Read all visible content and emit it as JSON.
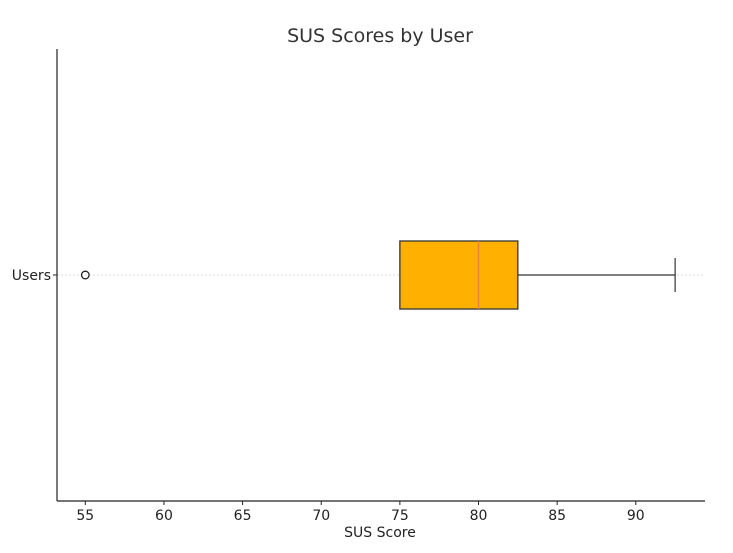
{
  "chart_data": {
    "type": "boxplot",
    "orientation": "horizontal",
    "title": "SUS Scores by User",
    "xlabel": "SUS Score",
    "ylabel": "",
    "xlim": [
      53.2,
      94.4
    ],
    "x_ticks": [
      55,
      60,
      65,
      70,
      75,
      80,
      85,
      90
    ],
    "categories": [
      "Users"
    ],
    "boxes": [
      {
        "category": "Users",
        "whisker_low": 75,
        "q1": 75,
        "median": 80,
        "q3": 82.5,
        "whisker_high": 92.5,
        "outliers": [
          55
        ]
      }
    ],
    "grid": "horizontal-dashed",
    "colors": {
      "box_fill": "#FFB000",
      "box_edge": "#333333",
      "median_line": "#E8803A",
      "whisker": "#333333",
      "grid": "#cccccc"
    }
  }
}
